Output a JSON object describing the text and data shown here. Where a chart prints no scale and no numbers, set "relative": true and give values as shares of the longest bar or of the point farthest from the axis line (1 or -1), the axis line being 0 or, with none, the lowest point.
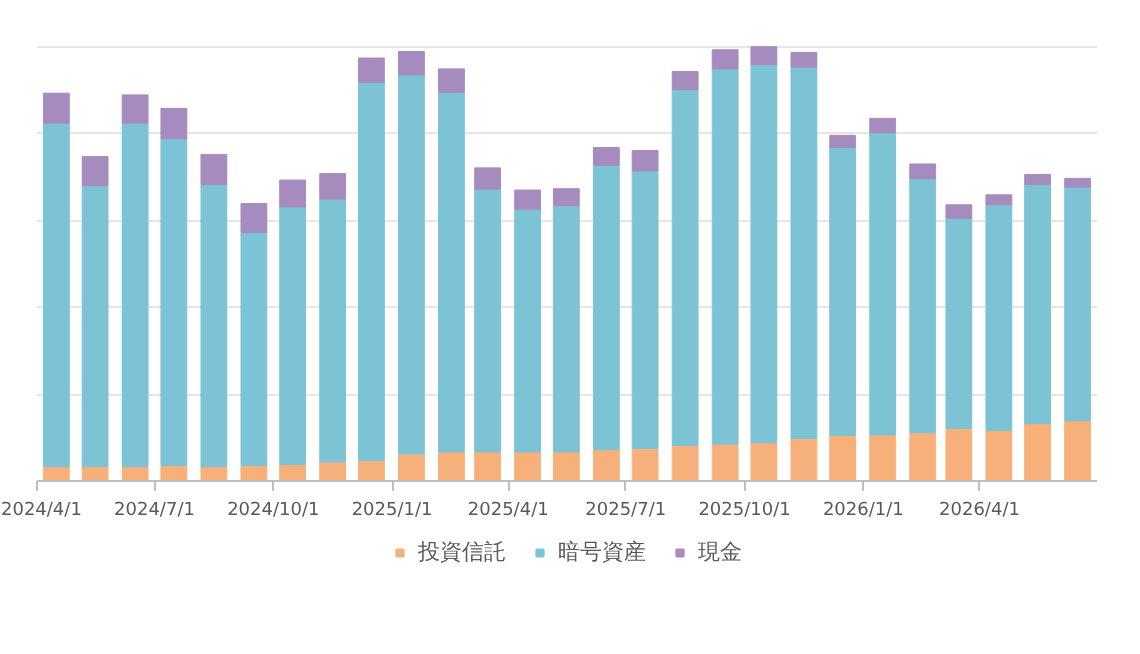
{
  "chart_data": {
    "type": "bar",
    "stacked": true,
    "relative": true,
    "grid": "y",
    "legend": "bottom",
    "x": [
      "2024-04-16",
      "2024-05-16",
      "2024-06-16",
      "2024-07-16",
      "2024-08-16",
      "2024-09-16",
      "2024-10-16",
      "2024-11-16",
      "2024-12-16",
      "2025-01-16",
      "2025-02-16",
      "2025-03-16",
      "2025-04-16",
      "2025-05-16",
      "2025-06-16",
      "2025-07-16",
      "2025-08-16",
      "2025-09-16",
      "2025-10-16",
      "2025-11-16",
      "2025-12-16",
      "2026-01-16",
      "2026-02-16",
      "2026-03-16",
      "2026-04-16",
      "2026-05-16",
      "2026-06-16"
    ],
    "xlim": [
      "2024-04-01",
      "2026-07-01"
    ],
    "xticks": [
      {
        "value": "2024-04-01",
        "label": "2024/4/1"
      },
      {
        "value": "2024-07-01",
        "label": "2024/7/1"
      },
      {
        "value": "2024-10-01",
        "label": "2024/10/1"
      },
      {
        "value": "2025-01-01",
        "label": "2025/1/1"
      },
      {
        "value": "2025-04-01",
        "label": "2025/4/1"
      },
      {
        "value": "2025-07-01",
        "label": "2025/7/1"
      },
      {
        "value": "2025-10-01",
        "label": "2025/10/1"
      },
      {
        "value": "2026-01-01",
        "label": "2026/1/1"
      },
      {
        "value": "2026-04-01",
        "label": "2026/4/1"
      }
    ],
    "series": [
      {
        "name": "投資信託",
        "color": "#f8b07a",
        "values": [
          0.033,
          0.033,
          0.033,
          0.036,
          0.033,
          0.036,
          0.038,
          0.044,
          0.047,
          0.062,
          0.067,
          0.067,
          0.067,
          0.067,
          0.072,
          0.075,
          0.082,
          0.085,
          0.088,
          0.098,
          0.105,
          0.106,
          0.111,
          0.121,
          0.116,
          0.132,
          0.139
        ]
      },
      {
        "name": "暗号資産",
        "color": "#7cc3d6",
        "values": [
          0.791,
          0.647,
          0.791,
          0.752,
          0.65,
          0.536,
          0.593,
          0.605,
          0.871,
          0.873,
          0.828,
          0.605,
          0.559,
          0.567,
          0.655,
          0.639,
          0.819,
          0.864,
          0.871,
          0.855,
          0.663,
          0.696,
          0.585,
          0.484,
          0.52,
          0.551,
          0.538
        ]
      },
      {
        "name": "現金",
        "color": "#a68bbf",
        "values": [
          0.069,
          0.067,
          0.065,
          0.07,
          0.069,
          0.067,
          0.062,
          0.059,
          0.056,
          0.054,
          0.054,
          0.049,
          0.044,
          0.039,
          0.041,
          0.047,
          0.042,
          0.044,
          0.041,
          0.034,
          0.028,
          0.033,
          0.034,
          0.031,
          0.023,
          0.023,
          0.02
        ]
      }
    ]
  }
}
